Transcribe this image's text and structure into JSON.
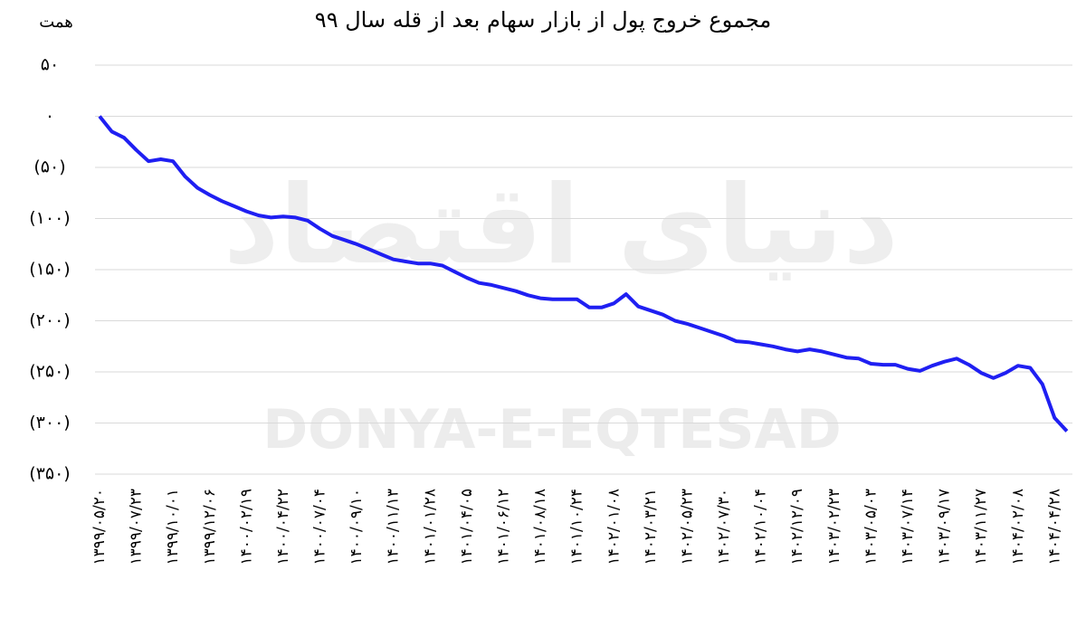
{
  "chart_data": {
    "type": "line",
    "title": "مجموع خروج پول از بازار سهام بعد از قله سال ۹۹",
    "y_label": "همت",
    "watermark": [
      "دنیای اقتصاد",
      "DONYA-E-EQTESAD"
    ],
    "color": "#1f1ff2",
    "grid": true,
    "ylim": [
      -350,
      50
    ],
    "yticks": [
      {
        "value": 50,
        "label": "۵۰"
      },
      {
        "value": 0,
        "label": "۰"
      },
      {
        "value": -50,
        "label": "(۵۰)"
      },
      {
        "value": -100,
        "label": "(۱۰۰)"
      },
      {
        "value": -150,
        "label": "(۱۵۰)"
      },
      {
        "value": -200,
        "label": "(۲۰۰)"
      },
      {
        "value": -250,
        "label": "(۲۵۰)"
      },
      {
        "value": -300,
        "label": "(۳۰۰)"
      },
      {
        "value": -350,
        "label": "(۳۵۰)"
      }
    ],
    "categories": [
      "۱۳۹۹/۰۵/۲۰",
      null,
      null,
      "۱۳۹۹/۰۷/۲۳",
      null,
      null,
      "۱۳۹۹/۱۰/۰۱",
      null,
      null,
      "۱۳۹۹/۱۲/۰۶",
      null,
      null,
      "۱۴۰۰/۰۲/۱۹",
      null,
      null,
      "۱۴۰۰/۰۴/۲۲",
      null,
      null,
      "۱۴۰۰/۰۷/۰۴",
      null,
      null,
      "۱۴۰۰/۰۹/۱۰",
      null,
      null,
      "۱۴۰۰/۱۱/۱۳",
      null,
      null,
      "۱۴۰۱/۰۱/۲۸",
      null,
      null,
      "۱۴۰۱/۰۴/۰۵",
      null,
      null,
      "۱۴۰۱/۰۶/۱۲",
      null,
      null,
      "۱۴۰۱/۰۸/۱۸",
      null,
      null,
      "۱۴۰۱/۱۰/۲۴",
      null,
      null,
      "۱۴۰۲/۰۱/۰۸",
      null,
      null,
      "۱۴۰۲/۰۳/۲۱",
      null,
      null,
      "۱۴۰۲/۰۵/۲۳",
      null,
      null,
      "۱۴۰۲/۰۷/۳۰",
      null,
      null,
      "۱۴۰۲/۱۰/۰۴",
      null,
      null,
      "۱۴۰۲/۱۲/۰۹",
      null,
      null,
      "۱۴۰۳/۰۲/۲۳",
      null,
      null,
      "۱۴۰۳/۰۵/۰۳",
      null,
      null,
      "۱۴۰۳/۰۷/۱۴",
      null,
      null,
      "۱۴۰۳/۰۹/۱۷",
      null,
      null,
      "۱۴۰۳/۱۱/۲۷",
      null,
      null,
      "۱۴۰۴/۰۲/۰۸",
      null,
      null,
      "۱۴۰۴/۰۴/۲۸",
      null
    ],
    "values": [
      0,
      -15,
      -21,
      -33,
      -44,
      -42,
      -44,
      -59,
      -70,
      -77,
      -83,
      -88,
      -93,
      -97,
      -99,
      -98,
      -99,
      -102,
      -110,
      -117,
      -121,
      -125,
      -130,
      -135,
      -140,
      -142,
      -144,
      -144,
      -146,
      -152,
      -158,
      -163,
      -165,
      -168,
      -171,
      -175,
      -178,
      -179,
      -179,
      -179,
      -187,
      -187,
      -183,
      -174,
      -186,
      -190,
      -194,
      -200,
      -203,
      -207,
      -211,
      -215,
      -220,
      -221,
      -223,
      -225,
      -228,
      -230,
      -228,
      -230,
      -233,
      -236,
      -237,
      -242,
      -243,
      -243,
      -247,
      -249,
      -244,
      -240,
      -237,
      -243,
      -251,
      -256,
      -251,
      -244,
      -246,
      -262,
      -295,
      -308
    ]
  }
}
